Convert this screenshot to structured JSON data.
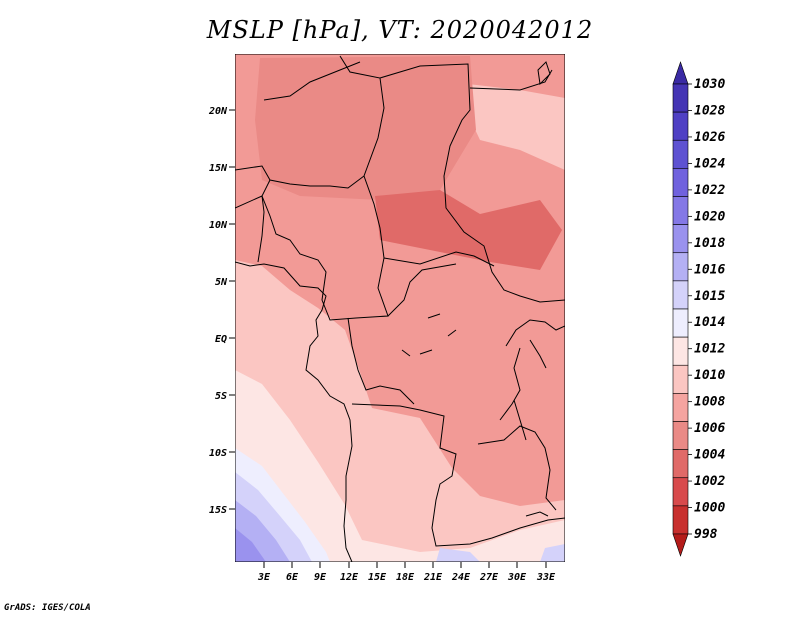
{
  "title": "MSLP [hPa], VT: 2020042012",
  "credit": "GrADS: IGES/COLA",
  "axes": {
    "lat_labels": [
      "20N",
      "15N",
      "10N",
      "5N",
      "EQ",
      "5S",
      "10S",
      "15S"
    ],
    "lon_labels": [
      "3E",
      "6E",
      "9E",
      "12E",
      "15E",
      "18E",
      "21E",
      "24E",
      "27E",
      "30E",
      "33E"
    ]
  },
  "colorbar": {
    "labels": [
      "1030",
      "1028",
      "1026",
      "1024",
      "1022",
      "1020",
      "1018",
      "1016",
      "1015",
      "1014",
      "1012",
      "1010",
      "1008",
      "1006",
      "1004",
      "1002",
      "1000",
      "998"
    ],
    "colors": [
      "#3a2aa4",
      "#4434b4",
      "#4f40c4",
      "#5e52d2",
      "#7062de",
      "#8478e6",
      "#9a92ee",
      "#b4b0f4",
      "#d4d2fa",
      "#eeeefe",
      "#fde6e4",
      "#fbc6c2",
      "#f5a4a0",
      "#ea8a86",
      "#e06a68",
      "#d84a4c",
      "#c8302e",
      "#b41c1a"
    ]
  }
}
